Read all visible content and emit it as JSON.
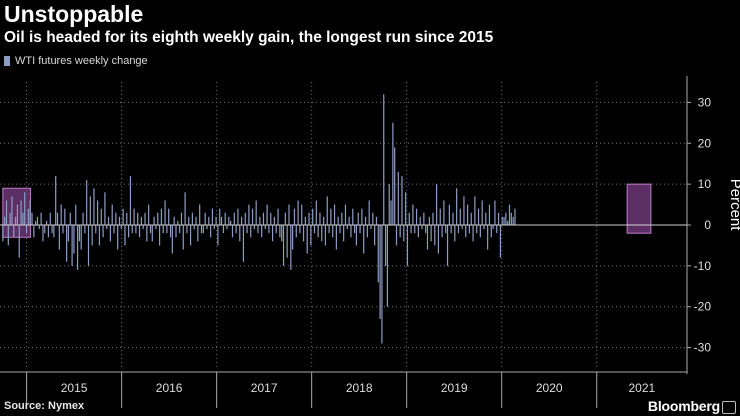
{
  "chart_data": {
    "type": "bar",
    "title": "Unstoppable",
    "subtitle": "Oil is headed for its eighth weekly gain, the longest run since 2015",
    "legend": [
      "WTI futures weekly change"
    ],
    "ylabel": "Percent",
    "xlabel": "",
    "ylim": [
      -35,
      35
    ],
    "yticks": [
      -30,
      -20,
      -10,
      0,
      10,
      20,
      30
    ],
    "year_labels": [
      "2015",
      "2016",
      "2017",
      "2018",
      "2019",
      "2020",
      "2021"
    ],
    "x_start": 2014.72,
    "x_end": 2021.95,
    "series": [
      {
        "name": "WTI futures weekly change",
        "x_start": 2014.75,
        "week_step": 0.01918,
        "values": [
          -4,
          2,
          6,
          -5,
          3,
          7,
          -3,
          2,
          5,
          -8,
          6,
          3,
          8,
          -2,
          4,
          6,
          3,
          -3,
          1,
          2,
          -1,
          3,
          -4,
          -2,
          1,
          -3,
          3,
          -2,
          -3,
          12,
          3,
          -6,
          5,
          -2,
          4,
          -9,
          -4,
          3,
          -10,
          -7,
          5,
          -11,
          -4,
          -6,
          3,
          -2,
          11,
          -10,
          7,
          -5,
          9,
          -2,
          6,
          -5,
          4,
          -3,
          8,
          -1,
          2,
          -4,
          5,
          -2,
          3,
          -6,
          2,
          -1,
          4,
          -5,
          3,
          -3,
          12,
          -2,
          4,
          -2,
          3,
          -3,
          2,
          -1,
          3,
          -4,
          5,
          -2,
          -4,
          2,
          -1,
          3,
          -5,
          4,
          -2,
          6,
          -2,
          4,
          -3,
          -7,
          2,
          -3,
          1,
          -2,
          3,
          -6,
          8,
          -2,
          2,
          -5,
          3,
          -1,
          2,
          -4,
          5,
          -2,
          -2,
          3,
          -1,
          2,
          -3,
          4,
          -1,
          2,
          -5,
          4,
          2,
          -2,
          3,
          -1,
          2,
          1,
          -3,
          3,
          -2,
          4,
          -4,
          2,
          -9,
          3,
          -2,
          5,
          -3,
          4,
          -1,
          6,
          -2,
          2,
          -3,
          3,
          -1,
          5,
          -2,
          3,
          -4,
          2,
          -2,
          4,
          -3,
          -4,
          -10,
          3,
          -8,
          5,
          -11,
          -6,
          4,
          -3,
          6,
          -2,
          5,
          -4,
          2,
          -7,
          3,
          -5,
          4,
          -2,
          6,
          -3,
          3,
          -4,
          2,
          -5,
          7,
          -2,
          4,
          -3,
          5,
          -6,
          2,
          -2,
          3,
          -4,
          5,
          -1,
          2,
          -3,
          4,
          -2,
          -5,
          3,
          -2,
          4,
          -7,
          2,
          -3,
          6,
          -1,
          3,
          -5,
          2,
          -14,
          -23,
          -29,
          32,
          -10,
          -20,
          10,
          6,
          25,
          19,
          -5,
          13,
          -3,
          12,
          -4,
          8,
          -10,
          3,
          -2,
          5,
          -2,
          4,
          -3,
          2,
          -1,
          3,
          -2,
          -6,
          2,
          -4,
          3,
          -5,
          10,
          -7,
          4,
          -3,
          6,
          -2,
          -10,
          5,
          -2,
          3,
          -4,
          9,
          -2,
          4,
          -1,
          7,
          -3,
          5,
          -2,
          3,
          -4,
          7,
          -2,
          4,
          -3,
          6,
          -1,
          3,
          -6,
          5,
          -3,
          -1,
          6,
          -2,
          3,
          -8,
          2,
          2,
          3,
          1,
          5,
          3,
          2,
          4
        ]
      }
    ],
    "highlights": [
      {
        "x_from": 2014.75,
        "x_to": 2015.04,
        "y_from": -3,
        "y_to": 9
      },
      {
        "x_from": 2021.32,
        "x_to": 2021.57,
        "y_from": -2,
        "y_to": 10
      }
    ],
    "colors": {
      "bar": "#8e9cc4",
      "highlight_fill": "#7a3f86",
      "highlight_stroke": "#c47ad0",
      "grid": "#6e6e6e",
      "zero_line": "#d0d0d0"
    }
  },
  "footer": {
    "source": "Source: Nymex",
    "brand": "Bloomberg"
  }
}
